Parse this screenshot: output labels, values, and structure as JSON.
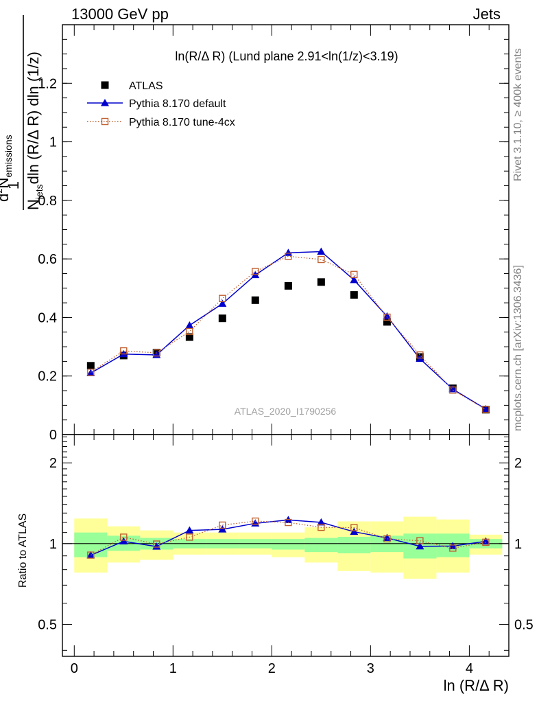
{
  "header": {
    "left": "13000 GeV pp",
    "right": "Jets"
  },
  "side_labels": {
    "rivet": "Rivet 3.1.10, ≥ 400k events",
    "mcplots": "mcplots.cern.ch [arXiv:1306.3436]"
  },
  "chart_data": [
    {
      "type": "line",
      "title": "ln(R/Δ R) (Lund plane 2.91<ln(1/z)<3.19)",
      "watermark": "ATLAS_2020_I1790256",
      "ylabel": {
        "frac_num": "1",
        "frac_den": "N",
        "frac_den_sub": "jets",
        "d": "d",
        "d_sup": "2",
        "n": "N",
        "n_sub": "emissions",
        "rest": "dln (R/Δ R) dln (1/z)"
      },
      "xlim": [
        -0.12,
        4.4
      ],
      "ylim": [
        0,
        1.4
      ],
      "yticks": [
        0,
        0.2,
        0.4,
        0.6,
        0.8,
        1,
        1.2
      ],
      "ytick_labels": [
        "0",
        "0.2",
        "0.4",
        "0.6",
        "0.8",
        "1",
        "1.2"
      ],
      "legend_position": "top-left",
      "x": [
        0.167,
        0.5,
        0.833,
        1.167,
        1.5,
        1.833,
        2.167,
        2.5,
        2.833,
        3.167,
        3.5,
        3.833,
        4.167
      ],
      "series": [
        {
          "name": "ATLAS",
          "color": "#000000",
          "marker": "square",
          "values": [
            0.235,
            0.27,
            0.28,
            0.333,
            0.397,
            0.459,
            0.508,
            0.521,
            0.477,
            0.385,
            0.265,
            0.158,
            0.085
          ]
        },
        {
          "name": "Pythia 8.170 default",
          "color": "#0000cc",
          "marker": "triangle",
          "values": [
            0.21,
            0.275,
            0.272,
            0.373,
            0.447,
            0.545,
            0.621,
            0.625,
            0.528,
            0.404,
            0.259,
            0.155,
            0.087
          ]
        },
        {
          "name": "Pythia 8.170 tune-4cx",
          "color": "#c06030",
          "marker": "open-square",
          "dotted": true,
          "values": [
            0.213,
            0.286,
            0.279,
            0.352,
            0.465,
            0.557,
            0.609,
            0.598,
            0.547,
            0.401,
            0.272,
            0.152,
            0.086
          ]
        }
      ]
    },
    {
      "type": "line",
      "ylabel": "Ratio to ATLAS",
      "xlabel": "ln (R/Δ R)",
      "xlim": [
        -0.12,
        4.4
      ],
      "ylim": [
        0.38,
        2.55
      ],
      "log_y": true,
      "xticks": [
        0,
        1,
        2,
        3,
        4
      ],
      "xtick_labels": [
        "0",
        "1",
        "2",
        "3",
        "4"
      ],
      "yticks": [
        0.5,
        1,
        2
      ],
      "ytick_labels": [
        "0.5",
        "1",
        "2"
      ],
      "x": [
        0.167,
        0.5,
        0.833,
        1.167,
        1.5,
        1.833,
        2.167,
        2.5,
        2.833,
        3.167,
        3.5,
        3.833,
        4.167
      ],
      "bin_edges": [
        0,
        0.333,
        0.667,
        1,
        1.333,
        1.667,
        2,
        2.333,
        2.667,
        3,
        3.333,
        3.667,
        4,
        4.333
      ],
      "bands": {
        "inner_color": "#99ff99",
        "outer_color": "#ffff99",
        "inner_low": [
          0.89,
          0.94,
          0.95,
          0.96,
          0.96,
          0.96,
          0.95,
          0.93,
          0.92,
          0.93,
          0.88,
          0.89,
          0.96
        ],
        "inner_high": [
          1.1,
          1.07,
          1.05,
          1.04,
          1.04,
          1.04,
          1.04,
          1.05,
          1.06,
          1.07,
          1.09,
          1.09,
          1.04
        ],
        "outer_low": [
          0.78,
          0.85,
          0.87,
          0.91,
          0.91,
          0.91,
          0.89,
          0.85,
          0.79,
          0.78,
          0.74,
          0.78,
          0.91
        ],
        "outer_high": [
          1.24,
          1.16,
          1.12,
          1.1,
          1.1,
          1.1,
          1.1,
          1.15,
          1.21,
          1.21,
          1.26,
          1.23,
          1.08
        ]
      },
      "series": [
        {
          "name": "Pythia 8.170 default",
          "color": "#0000cc",
          "marker": "triangle",
          "values": [
            0.905,
            1.02,
            0.975,
            1.12,
            1.13,
            1.19,
            1.225,
            1.2,
            1.107,
            1.05,
            0.977,
            0.979,
            1.02
          ]
        },
        {
          "name": "Pythia 8.170 tune-4cx",
          "color": "#c06030",
          "marker": "open-square",
          "dotted": true,
          "values": [
            0.906,
            1.057,
            0.996,
            1.057,
            1.172,
            1.213,
            1.199,
            1.15,
            1.147,
            1.042,
            1.025,
            0.962,
            1.012
          ]
        }
      ]
    }
  ]
}
